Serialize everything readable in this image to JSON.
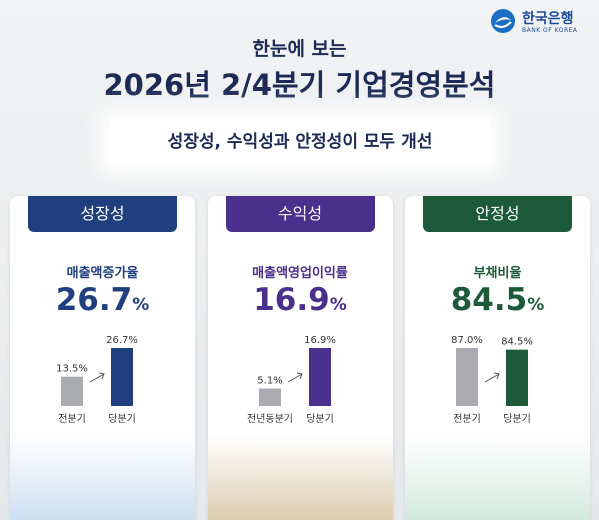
{
  "header": {
    "logo_korean": "한국은행",
    "logo_english": "BANK OF KOREA",
    "subtitle": "한눈에 보는",
    "title": "2026년 2/4분기 기업경영분석",
    "banner": "성장성, 수익성과 안정성이 모두 개선"
  },
  "cards": [
    {
      "tab": "성장성",
      "color": "#1f3f7e",
      "metric": "매출액증가율",
      "headline": 26.7,
      "unit": "%",
      "bars": [
        {
          "label": "전분기",
          "value": 13.5,
          "value_label": "13.5%",
          "color": "#a9abb0"
        },
        {
          "label": "당분기",
          "value": 26.7,
          "value_label": "26.7%",
          "color": "#1f3f7e"
        }
      ]
    },
    {
      "tab": "수익성",
      "color": "#4b2f8c",
      "metric": "매출액영업이익률",
      "headline": 16.9,
      "unit": "%",
      "bars": [
        {
          "label": "전년동분기",
          "value": 5.1,
          "value_label": "5.1%",
          "color": "#a9abb0"
        },
        {
          "label": "당분기",
          "value": 16.9,
          "value_label": "16.9%",
          "color": "#4b2f8c"
        }
      ]
    },
    {
      "tab": "안정성",
      "color": "#1d5a3a",
      "metric": "부채비율",
      "headline": 84.5,
      "unit": "%",
      "bars": [
        {
          "label": "전분기",
          "value": 87.0,
          "value_label": "87.0%",
          "color": "#a9abb0"
        },
        {
          "label": "당분기",
          "value": 84.5,
          "value_label": "84.5%",
          "color": "#1d5a3a"
        }
      ]
    }
  ]
}
